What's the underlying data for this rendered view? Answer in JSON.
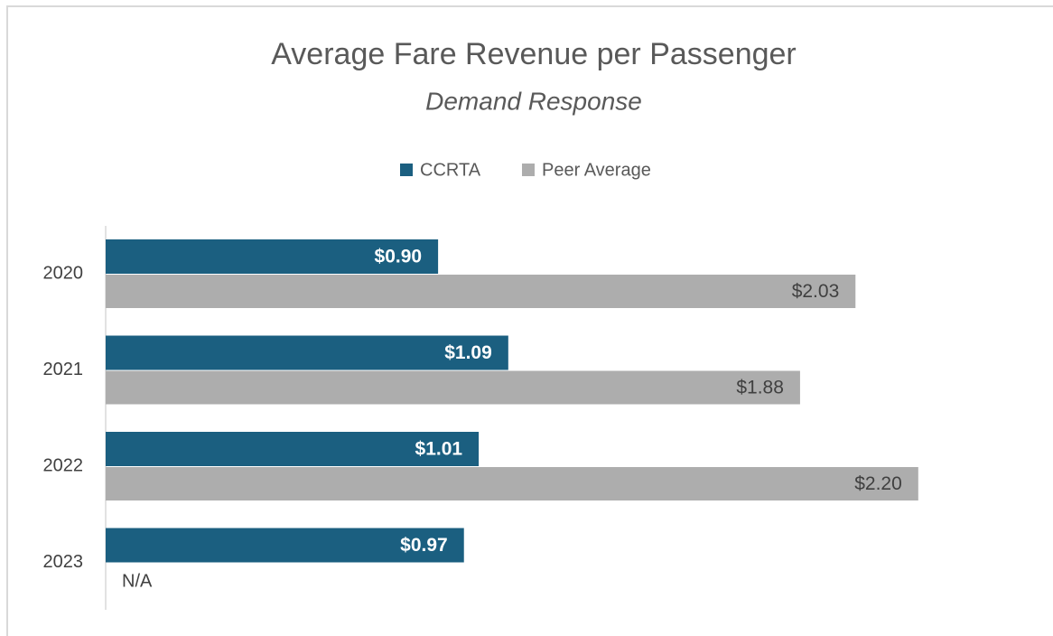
{
  "chart_data": {
    "type": "hbar",
    "title": "Average Fare Revenue per Passenger",
    "subtitle": "Demand Response",
    "categories": [
      "2020",
      "2021",
      "2022",
      "2023"
    ],
    "series": [
      {
        "name": "CCRTA",
        "color": "#1b5f80",
        "values": [
          0.9,
          1.09,
          1.01,
          0.97
        ],
        "value_labels": [
          "$0.90",
          "$1.09",
          "$1.01",
          "$0.97"
        ]
      },
      {
        "name": "Peer Average",
        "color": "#adadad",
        "values": [
          2.03,
          1.88,
          2.2,
          null
        ],
        "value_labels": [
          "$2.03",
          "$1.88",
          "$2.20",
          "N/A"
        ]
      }
    ],
    "legend": "top"
  }
}
